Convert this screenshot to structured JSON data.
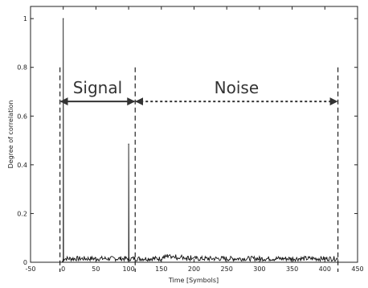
{
  "chart_data": {
    "type": "line",
    "xlabel": "Time [Symbols]",
    "ylabel": "Degree of correlation",
    "xlim": [
      -50,
      450
    ],
    "ylim": [
      0,
      1.05
    ],
    "xticks": [
      -50,
      0,
      50,
      100,
      150,
      200,
      250,
      300,
      350,
      400,
      450
    ],
    "yticks": [
      0,
      0.2,
      0.4,
      0.6,
      0.8,
      1
    ],
    "ytick_labels": [
      "0",
      "0.2",
      "0.4",
      "0.6",
      "0.8",
      "1"
    ],
    "grid": false,
    "series": [
      {
        "peaks": [
          {
            "x": 0,
            "y": 1.0
          },
          {
            "x": 100,
            "y": 0.485
          }
        ],
        "noise_floor_x_range": [
          -2,
          420
        ],
        "noise_floor_level": [
          0.005,
          0.025
        ]
      }
    ],
    "annotations": [
      {
        "label": "Signal",
        "x_start": -5,
        "x_end": 110,
        "y": 0.66,
        "style": "double-arrow"
      },
      {
        "label": "Noise",
        "x_start": 110,
        "x_end": 420,
        "y": 0.66,
        "style": "double-arrow-dashed"
      }
    ],
    "vlines": [
      -5,
      110,
      420
    ]
  }
}
